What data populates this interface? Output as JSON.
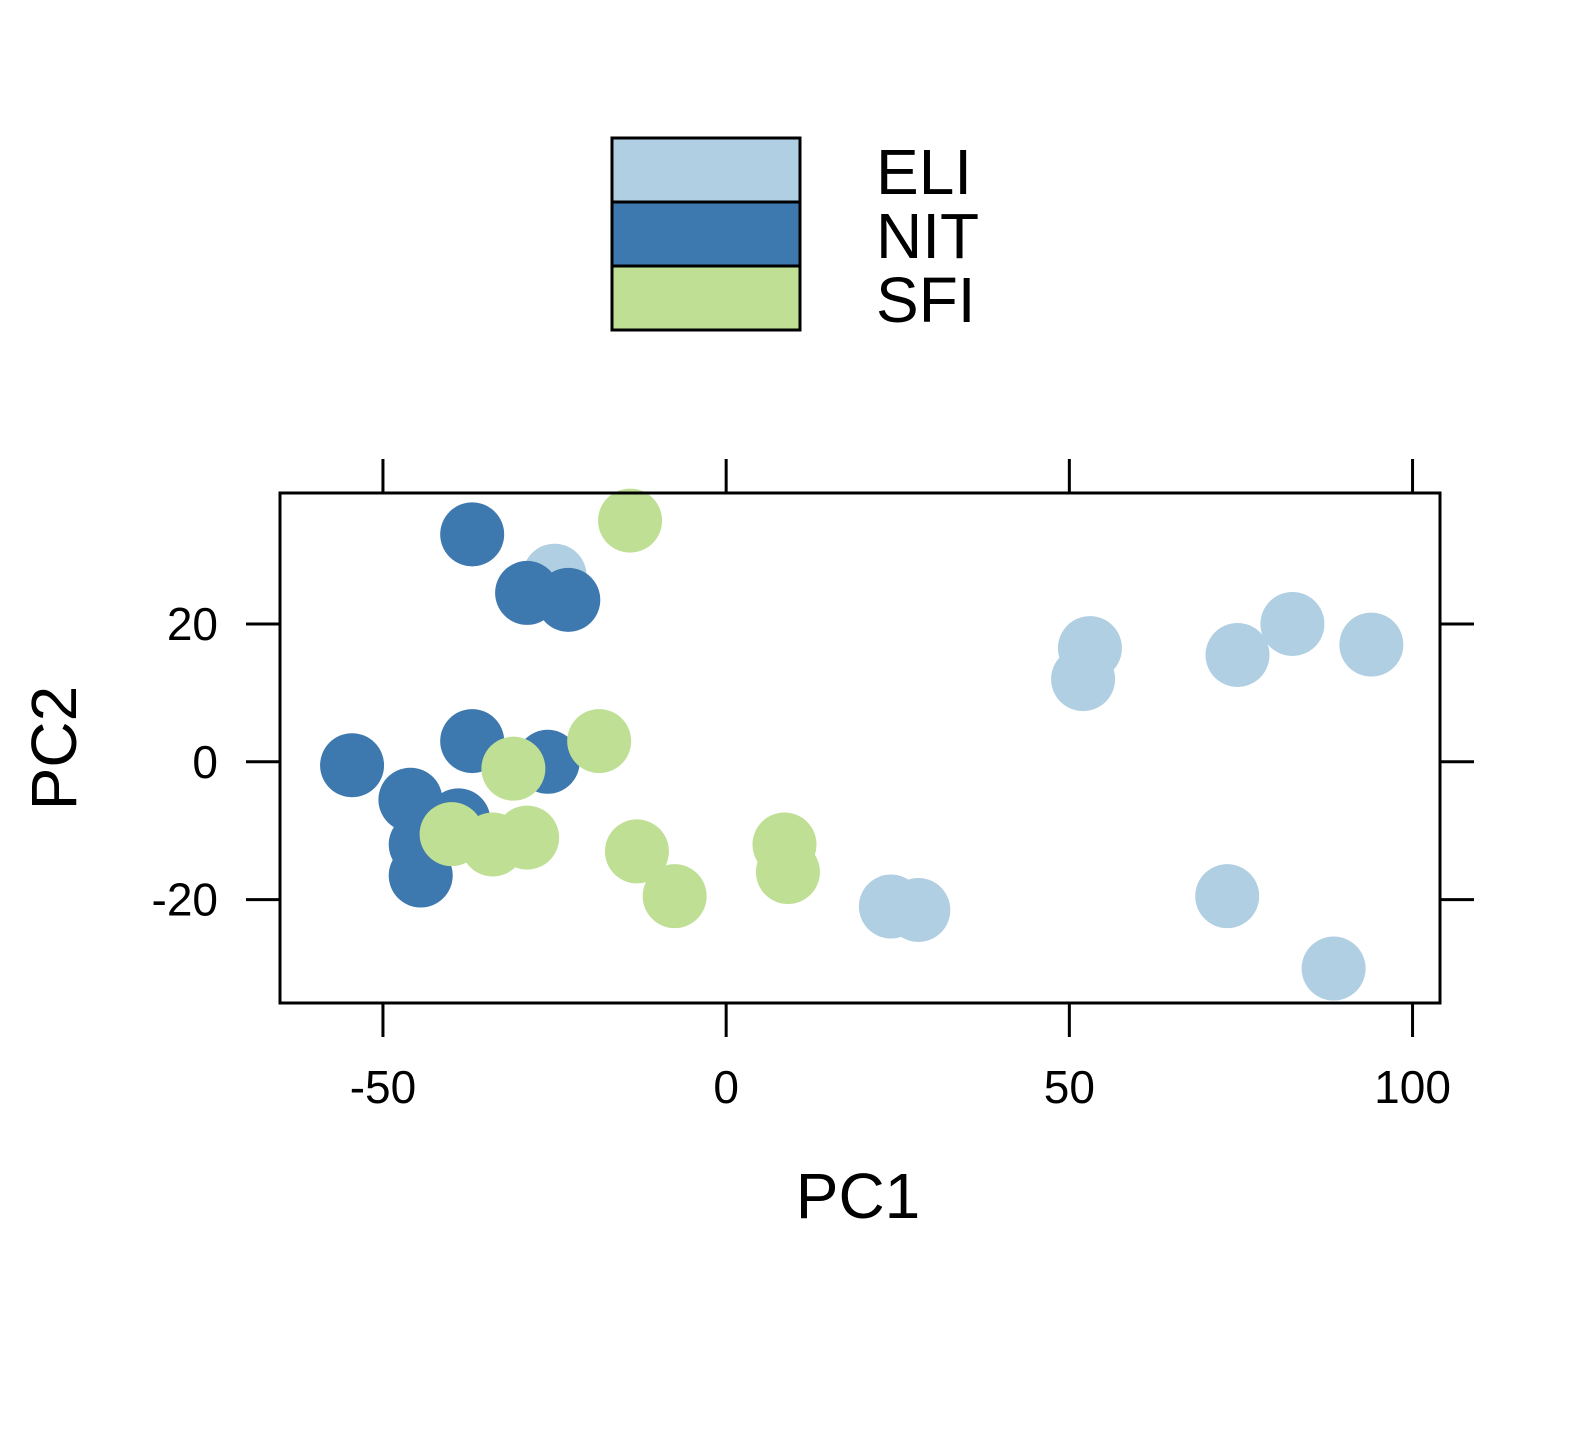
{
  "chart_data": {
    "type": "scatter",
    "xlabel": "PC1",
    "ylabel": "PC2",
    "xlim": [
      -65,
      104
    ],
    "ylim": [
      -35,
      39
    ],
    "x_ticks": [
      -50,
      0,
      50,
      100
    ],
    "y_ticks": [
      -20,
      0,
      20
    ],
    "x_tick_labels": [
      "-50",
      "0",
      "50",
      "100"
    ],
    "y_tick_labels": [
      "-20",
      "0",
      "20"
    ],
    "grid": false,
    "legend_position": "top",
    "series": [
      {
        "name": "ELI",
        "color": "#b0cfe2",
        "points": [
          {
            "x": -25,
            "y": 27
          },
          {
            "x": 53,
            "y": 16.5
          },
          {
            "x": 52,
            "y": 12
          },
          {
            "x": 74.5,
            "y": 15.5
          },
          {
            "x": 82.5,
            "y": 20
          },
          {
            "x": 94,
            "y": 17
          },
          {
            "x": 24,
            "y": -21
          },
          {
            "x": 28,
            "y": -21.5
          },
          {
            "x": 73,
            "y": -19.5
          },
          {
            "x": 88.5,
            "y": -30
          }
        ]
      },
      {
        "name": "NIT",
        "color": "#3d78af",
        "points": [
          {
            "x": -37,
            "y": 33
          },
          {
            "x": -29,
            "y": 24.5
          },
          {
            "x": -23,
            "y": 23.5
          },
          {
            "x": -37,
            "y": 3
          },
          {
            "x": -26,
            "y": 0
          },
          {
            "x": -54.5,
            "y": -0.5
          },
          {
            "x": -46,
            "y": -5.5
          },
          {
            "x": -39,
            "y": -8.5
          },
          {
            "x": -44.5,
            "y": -12
          },
          {
            "x": -44.5,
            "y": -16.5
          }
        ]
      },
      {
        "name": "SFI",
        "color": "#bfdf94",
        "points": [
          {
            "x": -14,
            "y": 35
          },
          {
            "x": -18.5,
            "y": 3
          },
          {
            "x": -31,
            "y": -1
          },
          {
            "x": -40,
            "y": -10.5
          },
          {
            "x": -34,
            "y": -12
          },
          {
            "x": -29,
            "y": -11
          },
          {
            "x": -13,
            "y": -13
          },
          {
            "x": -7.5,
            "y": -19.5
          },
          {
            "x": 8.5,
            "y": -12
          },
          {
            "x": 9,
            "y": -16
          }
        ]
      }
    ]
  }
}
